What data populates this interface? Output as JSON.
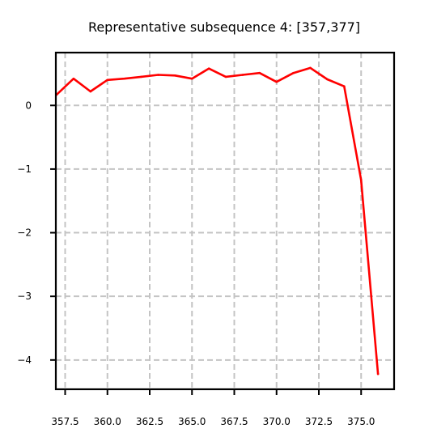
{
  "chart_data": {
    "type": "line",
    "title": "Representative subsequence 4: [357,377]",
    "xlabel": "",
    "ylabel": "",
    "xlim": [
      356.95,
      376.95
    ],
    "ylim": [
      -4.46,
      0.83
    ],
    "grid": true,
    "line_color": "#ff0000",
    "x_ticks": [
      357.5,
      360.0,
      362.5,
      365.0,
      367.5,
      370.0,
      372.5,
      375.0
    ],
    "x_tick_labels": [
      "357.5",
      "360.0",
      "362.5",
      "365.0",
      "367.5",
      "370.0",
      "372.5",
      "375.0"
    ],
    "y_ticks": [
      0,
      -1,
      -2,
      -3,
      -4
    ],
    "y_tick_labels": [
      "0",
      "−1",
      "−2",
      "−3",
      "−4"
    ],
    "series": [
      {
        "x": [
          357,
          358,
          359,
          360,
          361,
          362,
          363,
          364,
          365,
          366,
          367,
          368,
          369,
          370,
          371,
          372,
          373,
          374,
          375,
          376
        ],
        "values": [
          0.17,
          0.42,
          0.22,
          0.4,
          0.42,
          0.45,
          0.48,
          0.47,
          0.42,
          0.58,
          0.45,
          0.48,
          0.51,
          0.37,
          0.51,
          0.59,
          0.41,
          0.3,
          -1.17,
          -4.22
        ]
      }
    ]
  }
}
